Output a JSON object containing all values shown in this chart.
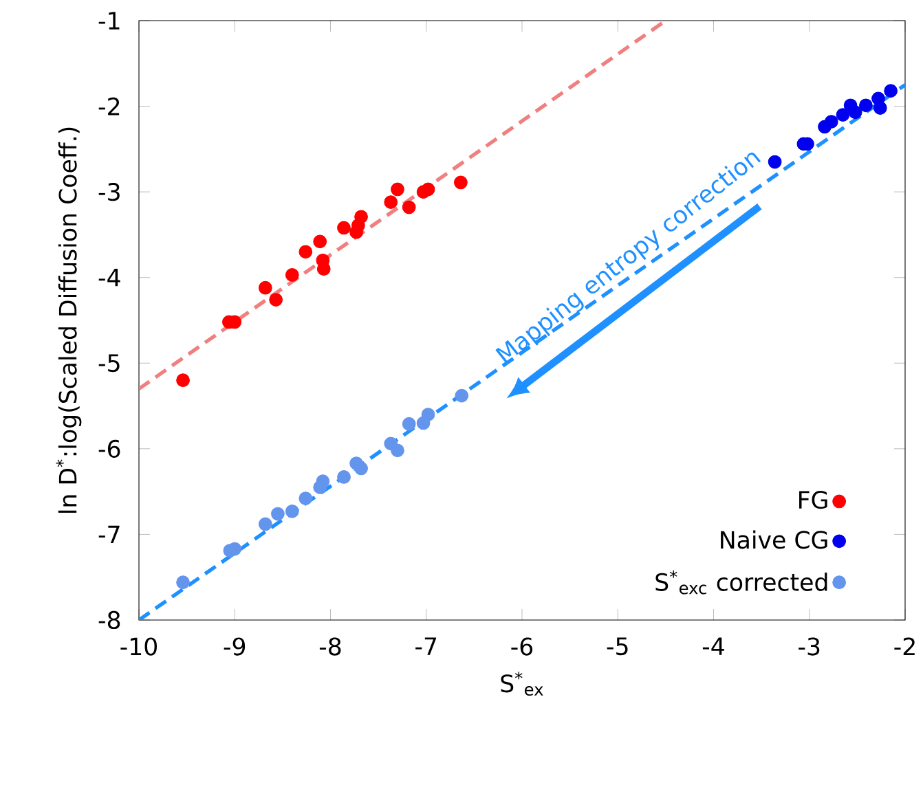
{
  "chart_data": {
    "type": "scatter",
    "xlabel": "S$^{*}$$_{ex}$",
    "ylabel": "ln D$^{*}$:log(Scaled Diffusion Coeff.)",
    "xlim": [
      -10,
      -2
    ],
    "ylim": [
      -8,
      -1
    ],
    "xticks": [
      -10,
      -9,
      -8,
      -7,
      -6,
      -5,
      -4,
      -3,
      -2
    ],
    "yticks": [
      -8,
      -7,
      -6,
      -5,
      -4,
      -3,
      -2,
      -1
    ],
    "legend": "bottom right",
    "grid": false,
    "annotations": [
      "Mapping entropy correction"
    ],
    "series": [
      {
        "name": "FG",
        "color": "#ff0000",
        "marker": "circle",
        "x": [
          -9.54,
          -9.06,
          -9.0,
          -8.68,
          -8.57,
          -8.4,
          -8.26,
          -8.11,
          -8.08,
          -8.07,
          -7.86,
          -7.73,
          -7.71,
          -7.68,
          -7.37,
          -7.3,
          -7.18,
          -7.03,
          -6.98,
          -6.64
        ],
        "values": [
          -5.2,
          -4.52,
          -4.52,
          -4.12,
          -4.26,
          -3.97,
          -3.7,
          -3.58,
          -3.8,
          -3.9,
          -3.42,
          -3.47,
          -3.39,
          -3.29,
          -3.12,
          -2.97,
          -3.18,
          -3.0,
          -2.97,
          -2.89
        ]
      },
      {
        "name": "Naive CG",
        "color": "#0000ee",
        "marker": "circle",
        "x": [
          -3.36,
          -3.06,
          -3.02,
          -2.84,
          -2.77,
          -2.65,
          -2.57,
          -2.52,
          -2.41,
          -2.28,
          -2.26,
          -2.15
        ],
        "values": [
          -2.65,
          -2.44,
          -2.44,
          -2.24,
          -2.18,
          -2.1,
          -1.99,
          -2.07,
          -1.99,
          -1.91,
          -2.02,
          -1.82
        ]
      },
      {
        "name": "S$^{*}$$_{exc}$ corrected",
        "color": "#6495ed",
        "marker": "circle",
        "x": [
          -9.54,
          -9.05,
          -9.0,
          -8.68,
          -8.55,
          -8.4,
          -8.26,
          -8.11,
          -8.08,
          -7.86,
          -7.73,
          -7.68,
          -7.37,
          -7.3,
          -7.18,
          -7.03,
          -6.98,
          -6.63
        ],
        "values": [
          -7.56,
          -7.19,
          -7.17,
          -6.88,
          -6.76,
          -6.73,
          -6.58,
          -6.45,
          -6.38,
          -6.33,
          -6.17,
          -6.23,
          -5.94,
          -6.02,
          -5.71,
          -5.7,
          -5.6,
          -5.38
        ]
      },
      {
        "type": "line",
        "color": "#f08080",
        "line_style": "dashed",
        "marker": "none",
        "x": [
          -10,
          -4.5
        ],
        "values": [
          -5.3,
          -1
        ]
      },
      {
        "type": "line",
        "color": "#1e90ff",
        "line_style": "dashed",
        "marker": "none",
        "x": [
          -10,
          -2
        ],
        "values": [
          -8,
          -1.75
        ]
      }
    ]
  }
}
